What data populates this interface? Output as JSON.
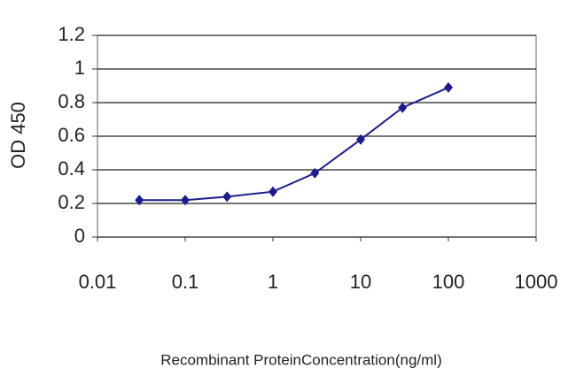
{
  "chart_data": {
    "type": "line",
    "x_label": "Recombinant ProteinConcentration(ng/ml)",
    "y_label": "OD 450",
    "x": [
      0.03,
      0.1,
      0.3,
      1,
      3,
      10,
      30,
      100
    ],
    "series": [
      {
        "color": "#1c1c8a",
        "values": [
          0.22,
          0.22,
          0.24,
          0.27,
          0.38,
          0.58,
          0.77,
          0.89
        ]
      }
    ],
    "xlim": [
      0.01,
      1000
    ],
    "xticks": [
      0.01,
      0.1,
      1,
      10,
      100,
      1000
    ],
    "x_log": true,
    "ylim": [
      0,
      1.2
    ],
    "yticks": [
      0,
      0.2,
      0.4,
      0.6,
      0.8,
      1,
      1.2
    ],
    "grid": true
  }
}
